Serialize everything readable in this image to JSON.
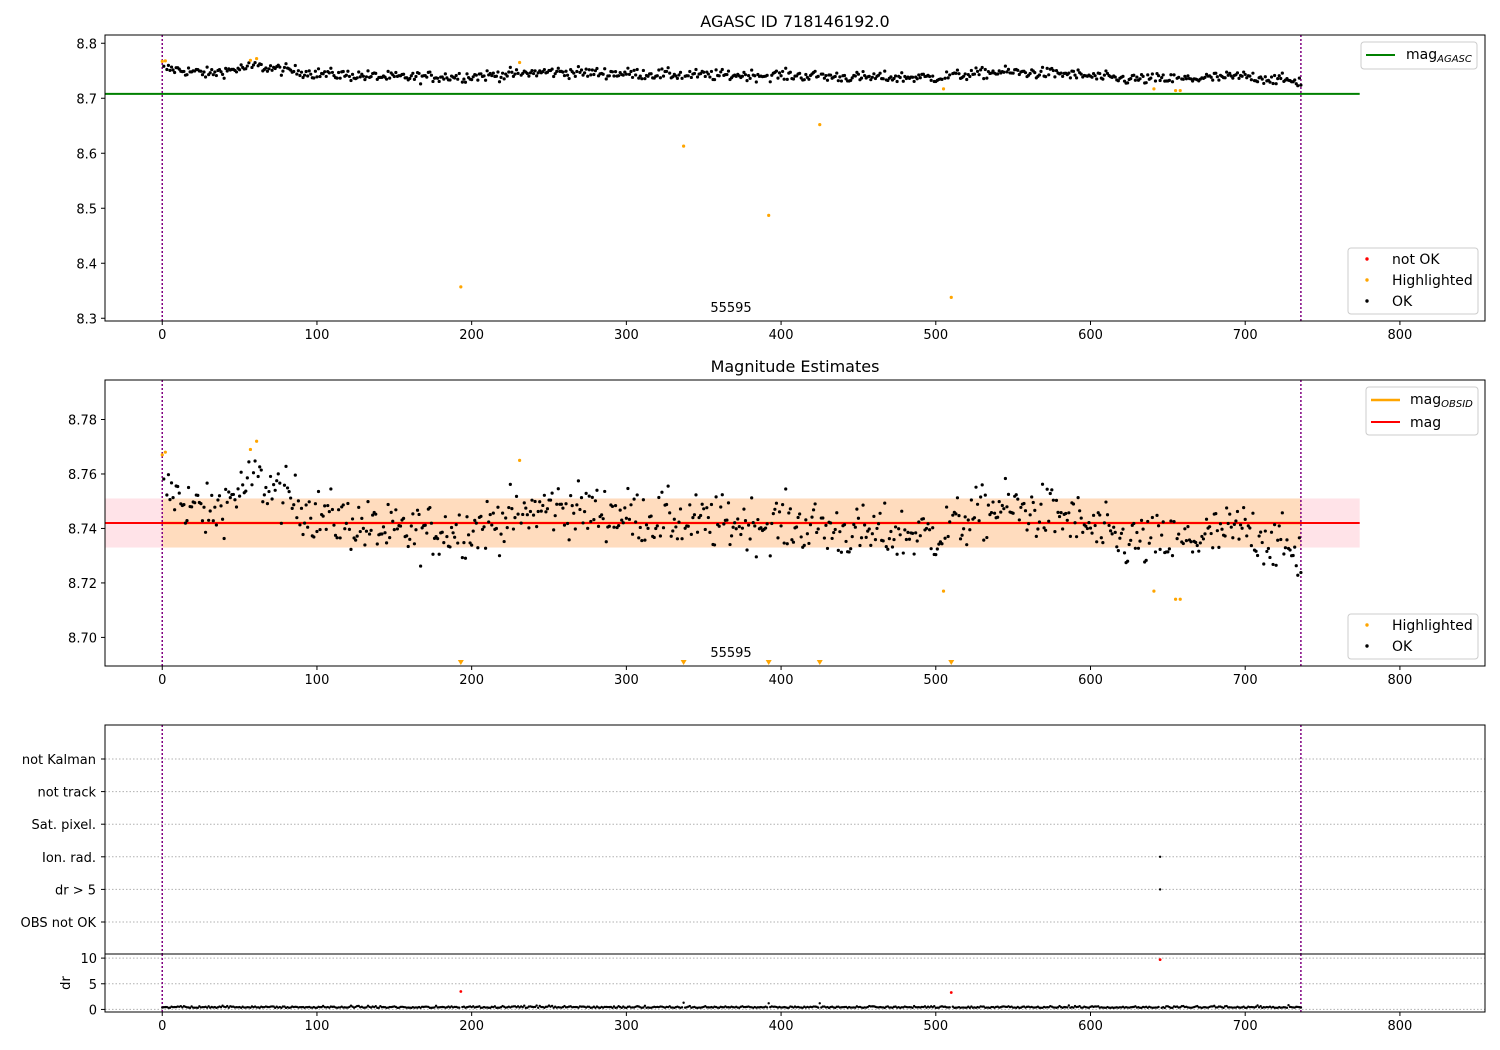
{
  "figure": {
    "title": "AGASC ID 718146192.0",
    "colors": {
      "ok": "#000000",
      "highlighted": "#ffa500",
      "not_ok": "#ff0000",
      "agasc_line": "#008000",
      "mag_line": "#ff0000",
      "mag_obsid_line": "#ffa500",
      "band_outer": "#ffc0cb",
      "band_inner": "#ffdab9",
      "obsid_marker": "#800080"
    }
  },
  "chart_data": [
    {
      "type": "scatter",
      "title": "AGASC ID 718146192.0",
      "xlim": [
        -37,
        855
      ],
      "ylim": [
        8.295,
        8.815
      ],
      "xticks": [
        "0",
        "100",
        "200",
        "300",
        "400",
        "500",
        "600",
        "700",
        "800"
      ],
      "yticks": [
        "8.3",
        "8.4",
        "8.5",
        "8.6",
        "8.7",
        "8.8"
      ],
      "ytick_values": [
        8.3,
        8.4,
        8.5,
        8.6,
        8.7,
        8.8
      ],
      "obsid_lines": [
        0,
        736
      ],
      "obsid_label": "55595",
      "obsid_label_x": 368,
      "grid": false,
      "mag_agasc": {
        "value": 8.708,
        "x_range": [
          -37,
          774
        ]
      },
      "ok_trend": {
        "x": [
          0,
          30,
          60,
          100,
          150,
          200,
          250,
          300,
          350,
          400,
          450,
          500,
          540,
          580,
          620,
          660,
          700,
          736
        ],
        "y": [
          8.755,
          8.745,
          8.758,
          8.745,
          8.738,
          8.74,
          8.748,
          8.745,
          8.742,
          8.742,
          8.738,
          8.738,
          8.748,
          8.745,
          8.735,
          8.735,
          8.74,
          8.73
        ]
      },
      "ok_noise": 0.009,
      "ok_count": 737,
      "highlighted": {
        "x": [
          0,
          2,
          57,
          61,
          231,
          193,
          337,
          392,
          425,
          505,
          510,
          641,
          655,
          658
        ],
        "y": [
          8.767,
          8.768,
          8.769,
          8.772,
          8.765,
          8.357,
          8.613,
          8.487,
          8.652,
          8.717,
          8.338,
          8.717,
          8.714,
          8.714
        ]
      },
      "not_ok": {
        "x": [],
        "y": []
      },
      "legend_upper": [
        "mag",
        "AGASC"
      ],
      "legend_lower": [
        "not OK",
        "Highlighted",
        "OK"
      ]
    },
    {
      "type": "scatter",
      "title": "Magnitude Estimates",
      "xlim": [
        -37,
        855
      ],
      "ylim": [
        8.6895,
        8.7945
      ],
      "xticks": [
        "0",
        "100",
        "200",
        "300",
        "400",
        "500",
        "600",
        "700",
        "800"
      ],
      "yticks": [
        "8.70",
        "8.72",
        "8.74",
        "8.76",
        "8.78"
      ],
      "ytick_values": [
        8.7,
        8.72,
        8.74,
        8.76,
        8.78
      ],
      "obsid_lines": [
        0,
        736
      ],
      "obsid_label": "55595",
      "obsid_label_x": 368,
      "grid": false,
      "mag": {
        "value": 8.742,
        "x_range": [
          -37,
          774
        ]
      },
      "mag_obsid": {
        "value": 8.742,
        "x_range": [
          0,
          736
        ]
      },
      "band_outer": [
        8.733,
        8.751
      ],
      "band_inner": [
        8.733,
        8.751
      ],
      "ok_trend": {
        "x": [
          0,
          30,
          60,
          100,
          150,
          200,
          250,
          300,
          350,
          400,
          450,
          500,
          540,
          580,
          620,
          660,
          700,
          736
        ],
        "y": [
          8.755,
          8.745,
          8.758,
          8.745,
          8.738,
          8.74,
          8.748,
          8.745,
          8.742,
          8.742,
          8.738,
          8.738,
          8.748,
          8.745,
          8.735,
          8.735,
          8.74,
          8.73
        ]
      },
      "ok_noise": 0.009,
      "highlighted": {
        "x": [
          0,
          2,
          57,
          61,
          231,
          505,
          641,
          655,
          658
        ],
        "y": [
          8.767,
          8.768,
          8.769,
          8.772,
          8.765,
          8.717,
          8.717,
          8.714,
          8.714
        ]
      },
      "below_range_markers_x": [
        193,
        337,
        392,
        425,
        510
      ],
      "legend_upper": [
        [
          "mag",
          "OBSID"
        ],
        [
          "mag",
          ""
        ]
      ],
      "legend_lower": [
        "Highlighted",
        "OK"
      ]
    },
    {
      "type": "scatter",
      "title": "",
      "xlim": [
        -37,
        855
      ],
      "flag_rows": [
        "not Kalman",
        "not track",
        "Sat. pixel.",
        "Ion. rad.",
        "dr > 5",
        "OBS not OK"
      ],
      "flag_points": [
        {
          "row": "Ion. rad.",
          "x": 645
        },
        {
          "row": "dr > 5",
          "x": 645
        }
      ],
      "obsid_lines": [
        0,
        736
      ]
    },
    {
      "type": "scatter",
      "title": "",
      "xlim": [
        -37,
        855
      ],
      "ylim": [
        -0.5,
        10.8
      ],
      "ylabel": "dr",
      "yticks": [
        "0",
        "5",
        "10"
      ],
      "ytick_values": [
        0,
        5,
        10
      ],
      "xticks": [
        "0",
        "100",
        "200",
        "300",
        "400",
        "500",
        "600",
        "700",
        "800"
      ],
      "obsid_lines": [
        0,
        736
      ],
      "dr_ok_base": 0.3,
      "dr_ok_spikes": {
        "x": [
          337,
          392,
          425
        ],
        "y": [
          1.3,
          1.2,
          1.2
        ]
      },
      "dr_not_ok": {
        "x": [
          193,
          510,
          645
        ],
        "y": [
          3.5,
          3.3,
          9.7
        ]
      }
    }
  ]
}
